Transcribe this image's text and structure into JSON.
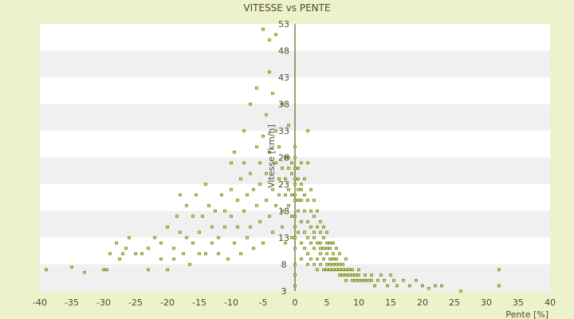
{
  "chart_data": {
    "type": "scatter",
    "title": "VITESSE vs PENTE",
    "xlabel": "Pente [%]",
    "ylabel": "Vitesse [km/h]",
    "xlim": [
      -40,
      40
    ],
    "ylim": [
      3,
      53
    ],
    "xticks": [
      -40,
      -35,
      -30,
      -25,
      -20,
      -15,
      -10,
      -5,
      0,
      5,
      10,
      15,
      20,
      25,
      30,
      35,
      40
    ],
    "yticks": [
      3,
      8,
      13,
      18,
      23,
      28,
      33,
      38,
      43,
      48,
      53
    ],
    "grid": "horizontal alternating bands",
    "marker_color": "#6b7a10",
    "background_color": "#eef2cc",
    "series": [
      {
        "points": [
          [
            -39,
            7
          ],
          [
            -35,
            7.5
          ],
          [
            -33,
            6.5
          ],
          [
            -30,
            7
          ],
          [
            -29.5,
            7
          ],
          [
            -29,
            10
          ],
          [
            -28,
            12
          ],
          [
            -27.5,
            9
          ],
          [
            -27,
            10
          ],
          [
            -26.5,
            11
          ],
          [
            -26,
            13
          ],
          [
            -25,
            10
          ],
          [
            -24,
            10
          ],
          [
            -23,
            11
          ],
          [
            -23,
            7
          ],
          [
            -22,
            13
          ],
          [
            -21,
            12
          ],
          [
            -21,
            9
          ],
          [
            -20,
            15
          ],
          [
            -20,
            7
          ],
          [
            -19,
            11
          ],
          [
            -19,
            9
          ],
          [
            -18.5,
            17
          ],
          [
            -18,
            21
          ],
          [
            -18,
            14
          ],
          [
            -17.5,
            10
          ],
          [
            -17,
            19
          ],
          [
            -17,
            13
          ],
          [
            -16.5,
            8
          ],
          [
            -16,
            12
          ],
          [
            -16,
            17
          ],
          [
            -15.5,
            21
          ],
          [
            -15,
            10
          ],
          [
            -15,
            14
          ],
          [
            -14.5,
            17
          ],
          [
            -14,
            10
          ],
          [
            -14,
            23
          ],
          [
            -13.5,
            19
          ],
          [
            -13,
            12
          ],
          [
            -13,
            15
          ],
          [
            -12.5,
            18
          ],
          [
            -12,
            10
          ],
          [
            -12,
            13
          ],
          [
            -11.5,
            21
          ],
          [
            -11,
            18
          ],
          [
            -11,
            15
          ],
          [
            -10.5,
            9
          ],
          [
            -10,
            17
          ],
          [
            -10,
            22
          ],
          [
            -10,
            27
          ],
          [
            -9.5,
            12
          ],
          [
            -9.5,
            29
          ],
          [
            -9,
            20
          ],
          [
            -9,
            15
          ],
          [
            -8.5,
            24
          ],
          [
            -8.5,
            10
          ],
          [
            -8,
            18
          ],
          [
            -8,
            33
          ],
          [
            -8,
            27
          ],
          [
            -7.5,
            21
          ],
          [
            -7.5,
            13
          ],
          [
            -7,
            25
          ],
          [
            -7,
            38
          ],
          [
            -7,
            15
          ],
          [
            -6.5,
            22
          ],
          [
            -6.5,
            11
          ],
          [
            -6,
            19
          ],
          [
            -6,
            30
          ],
          [
            -6,
            41
          ],
          [
            -5.5,
            23
          ],
          [
            -5.5,
            16
          ],
          [
            -5.5,
            27
          ],
          [
            -5,
            32
          ],
          [
            -5,
            52
          ],
          [
            -5,
            12
          ],
          [
            -4.5,
            20
          ],
          [
            -4.5,
            36
          ],
          [
            -4.5,
            25
          ],
          [
            -4,
            44
          ],
          [
            -4,
            29
          ],
          [
            -4,
            17
          ],
          [
            -4,
            50
          ],
          [
            -3.5,
            22
          ],
          [
            -3.5,
            40
          ],
          [
            -3.5,
            14
          ],
          [
            -3,
            27
          ],
          [
            -3,
            33
          ],
          [
            -3,
            19
          ],
          [
            -3,
            51
          ],
          [
            -2.5,
            24
          ],
          [
            -2.5,
            30
          ],
          [
            -2.5,
            21
          ],
          [
            -2,
            18
          ],
          [
            -2,
            26
          ],
          [
            -2,
            38
          ],
          [
            -2,
            15
          ],
          [
            -1.5,
            24
          ],
          [
            -1.5,
            28
          ],
          [
            -1.5,
            21
          ],
          [
            -1.5,
            12
          ],
          [
            -1,
            26
          ],
          [
            -1,
            22
          ],
          [
            -1,
            19
          ],
          [
            -1,
            28
          ],
          [
            -1,
            34
          ],
          [
            -0.5,
            25
          ],
          [
            -0.5,
            21
          ],
          [
            -0.5,
            27
          ],
          [
            -0.5,
            17
          ],
          [
            -0.5,
            13
          ],
          [
            0,
            23
          ],
          [
            0,
            20
          ],
          [
            0,
            26
          ],
          [
            0,
            17
          ],
          [
            0,
            30
          ],
          [
            0,
            24
          ],
          [
            0,
            28
          ],
          [
            0,
            15
          ],
          [
            0,
            13
          ],
          [
            0,
            11
          ],
          [
            0,
            8
          ],
          [
            0,
            6
          ],
          [
            0,
            4
          ],
          [
            0,
            21
          ],
          [
            0.5,
            24
          ],
          [
            0.5,
            22
          ],
          [
            0.5,
            18
          ],
          [
            0.5,
            14
          ],
          [
            0.5,
            26
          ],
          [
            0.5,
            20
          ],
          [
            1,
            20
          ],
          [
            1,
            23
          ],
          [
            1,
            16
          ],
          [
            1,
            12
          ],
          [
            1,
            27
          ],
          [
            1,
            9
          ],
          [
            1,
            22
          ],
          [
            1.5,
            18
          ],
          [
            1.5,
            14
          ],
          [
            1.5,
            21
          ],
          [
            1.5,
            11
          ],
          [
            1.5,
            24
          ],
          [
            2,
            16
          ],
          [
            2,
            20
          ],
          [
            2,
            13
          ],
          [
            2,
            10
          ],
          [
            2,
            33
          ],
          [
            2,
            8
          ],
          [
            2,
            27
          ],
          [
            2.5,
            15
          ],
          [
            2.5,
            18
          ],
          [
            2.5,
            12
          ],
          [
            2.5,
            9
          ],
          [
            2.5,
            22
          ],
          [
            3,
            14
          ],
          [
            3,
            11
          ],
          [
            3,
            17
          ],
          [
            3,
            8
          ],
          [
            3,
            20
          ],
          [
            3,
            13
          ],
          [
            3.5,
            12
          ],
          [
            3.5,
            15
          ],
          [
            3.5,
            9
          ],
          [
            3.5,
            18
          ],
          [
            3.5,
            7
          ],
          [
            4,
            12
          ],
          [
            4,
            10
          ],
          [
            4,
            14
          ],
          [
            4,
            8
          ],
          [
            4,
            16
          ],
          [
            4,
            11
          ],
          [
            4.5,
            11
          ],
          [
            4.5,
            9
          ],
          [
            4.5,
            13
          ],
          [
            4.5,
            7
          ],
          [
            4.5,
            15
          ],
          [
            5,
            10
          ],
          [
            5,
            12
          ],
          [
            5,
            8
          ],
          [
            5,
            11
          ],
          [
            5,
            7
          ],
          [
            5,
            14
          ],
          [
            5.5,
            9
          ],
          [
            5.5,
            11
          ],
          [
            5.5,
            8
          ],
          [
            5.5,
            12
          ],
          [
            5.5,
            7
          ],
          [
            6,
            8
          ],
          [
            6,
            10
          ],
          [
            6,
            9
          ],
          [
            6,
            7
          ],
          [
            6,
            12
          ],
          [
            6.5,
            8
          ],
          [
            6.5,
            7
          ],
          [
            6.5,
            9
          ],
          [
            6.5,
            11
          ],
          [
            7,
            7
          ],
          [
            7,
            8
          ],
          [
            7,
            6
          ],
          [
            7,
            10
          ],
          [
            7.5,
            7
          ],
          [
            7.5,
            6
          ],
          [
            7.5,
            8
          ],
          [
            8,
            7
          ],
          [
            8,
            6
          ],
          [
            8,
            5
          ],
          [
            8,
            9
          ],
          [
            8.5,
            6
          ],
          [
            8.5,
            7
          ],
          [
            9,
            6
          ],
          [
            9,
            5
          ],
          [
            9,
            7
          ],
          [
            9.5,
            6
          ],
          [
            9.5,
            5
          ],
          [
            10,
            6
          ],
          [
            10,
            5
          ],
          [
            10,
            7
          ],
          [
            10.5,
            5
          ],
          [
            11,
            6
          ],
          [
            11,
            5
          ],
          [
            11.5,
            5
          ],
          [
            12,
            6
          ],
          [
            12,
            5
          ],
          [
            12.5,
            4
          ],
          [
            13,
            5
          ],
          [
            13.5,
            6
          ],
          [
            14,
            5
          ],
          [
            14.5,
            4
          ],
          [
            15,
            6
          ],
          [
            15.5,
            5
          ],
          [
            16,
            4
          ],
          [
            17,
            5
          ],
          [
            18,
            4
          ],
          [
            19,
            5
          ],
          [
            20,
            4
          ],
          [
            21,
            3.5
          ],
          [
            22,
            4
          ],
          [
            23,
            4
          ],
          [
            26,
            3
          ],
          [
            28,
            2.5
          ],
          [
            32,
            7
          ],
          [
            32,
            4
          ]
        ]
      }
    ]
  }
}
